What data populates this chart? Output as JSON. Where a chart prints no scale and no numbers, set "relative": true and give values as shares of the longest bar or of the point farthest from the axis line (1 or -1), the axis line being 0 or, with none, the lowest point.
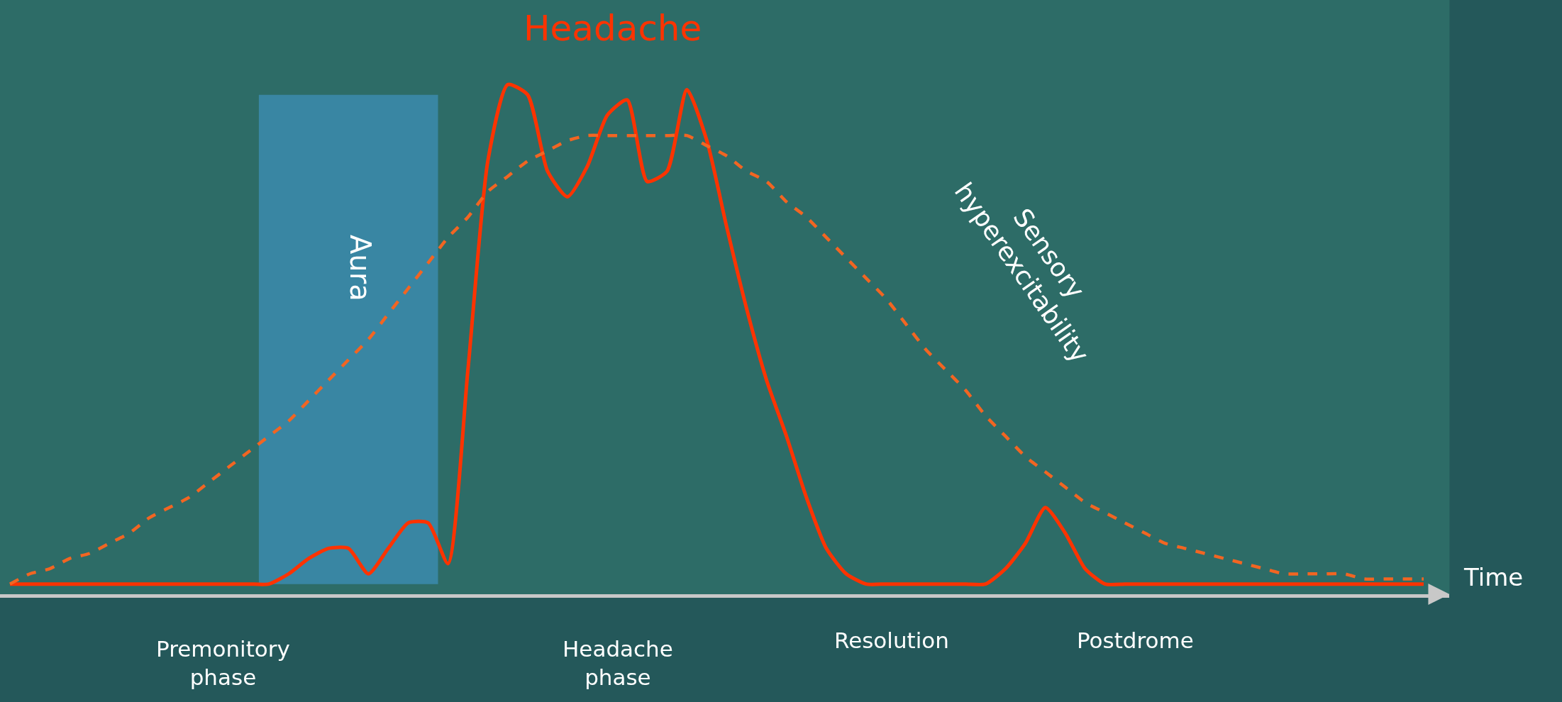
{
  "chart_data": {
    "type": "line",
    "relative": true,
    "xlabel": "Time",
    "tick_labels": false,
    "grid": false,
    "legend": false,
    "marker": "none",
    "categories": [
      null,
      null,
      null,
      null,
      null,
      null,
      null,
      null,
      null,
      null,
      null,
      null,
      null,
      null,
      null,
      null,
      null,
      null,
      null,
      null,
      null,
      null,
      null,
      null,
      null,
      null,
      null,
      null,
      null,
      null,
      null,
      null,
      null,
      null,
      null,
      null,
      null,
      null,
      null,
      null,
      null,
      null,
      null,
      null,
      null,
      null,
      null,
      null,
      null,
      null,
      null,
      null,
      null,
      null,
      null,
      null,
      null,
      null,
      null,
      null,
      null,
      null,
      null,
      null,
      null,
      null,
      null,
      null,
      null,
      null,
      null,
      null
    ],
    "series": [
      {
        "name": "Headache",
        "color": "#ff3300",
        "line_style": "solid",
        "values": [
          0.02,
          0.02,
          0.02,
          0.02,
          0.02,
          0.02,
          0.02,
          0.02,
          0.02,
          0.02,
          0.02,
          0.02,
          0.02,
          0.02,
          0.04,
          0.07,
          0.09,
          0.09,
          0.04,
          0.09,
          0.14,
          0.14,
          0.06,
          0.44,
          0.85,
          1.0,
          0.98,
          0.83,
          0.78,
          0.84,
          0.94,
          0.97,
          0.81,
          0.83,
          0.99,
          0.89,
          0.72,
          0.56,
          0.42,
          0.31,
          0.19,
          0.09,
          0.04,
          0.02,
          0.02,
          0.02,
          0.02,
          0.02,
          0.02,
          0.02,
          0.05,
          0.1,
          0.17,
          0.12,
          0.05,
          0.02,
          0.02,
          0.02,
          0.02,
          0.02,
          0.02,
          0.02,
          0.02,
          0.02,
          0.02,
          0.02,
          0.02,
          0.02,
          0.02,
          0.02,
          0.02,
          0.02
        ]
      },
      {
        "name": "Sensory hyperexcitability",
        "color": "#f26522",
        "line_style": "dashed",
        "values": [
          0.02,
          0.04,
          0.05,
          0.07,
          0.08,
          0.1,
          0.12,
          0.15,
          0.17,
          0.19,
          0.22,
          0.25,
          0.28,
          0.31,
          0.34,
          0.38,
          0.42,
          0.46,
          0.5,
          0.55,
          0.6,
          0.65,
          0.7,
          0.74,
          0.79,
          0.82,
          0.85,
          0.87,
          0.89,
          0.9,
          0.9,
          0.9,
          0.9,
          0.9,
          0.9,
          0.88,
          0.86,
          0.83,
          0.81,
          0.77,
          0.74,
          0.7,
          0.66,
          0.62,
          0.58,
          0.53,
          0.48,
          0.44,
          0.4,
          0.35,
          0.31,
          0.27,
          0.24,
          0.21,
          0.18,
          0.16,
          0.14,
          0.12,
          0.1,
          0.09,
          0.08,
          0.07,
          0.06,
          0.05,
          0.04,
          0.04,
          0.04,
          0.04,
          0.03,
          0.03,
          0.03,
          0.03
        ]
      }
    ],
    "annotations": [
      "Aura",
      "Premonitory phase",
      "Headache phase",
      "Resolution",
      "Postdrome"
    ]
  }
}
